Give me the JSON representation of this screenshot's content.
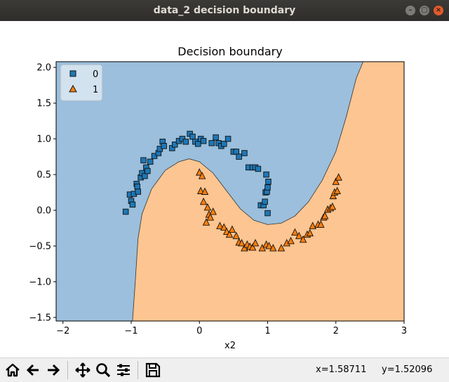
{
  "window": {
    "title": "data_2 decision boundary"
  },
  "window_buttons": {
    "minimize": "–",
    "maximize": "▢",
    "close": "×"
  },
  "chart_data": {
    "type": "scatter",
    "title": "Decision boundary",
    "xlabel": "x2",
    "ylabel": "",
    "xlim": [
      -2.1,
      3.0
    ],
    "ylim": [
      -1.55,
      2.08
    ],
    "xticks": [
      "−2",
      "−1",
      "0",
      "1",
      "2",
      "3"
    ],
    "yticks": [
      "2.0",
      "1.5",
      "1.0",
      "0.5",
      "0.0",
      "−0.5",
      "−1.0",
      "−1.5"
    ],
    "legend": {
      "placement": "upper-left",
      "entries": [
        "0",
        "1"
      ]
    },
    "region_colors": {
      "class_0": "#9bbfdc",
      "class_1": "#fdc591"
    },
    "marker_colors": {
      "class_0": "#1f77b4",
      "class_1": "#ff7f0e"
    },
    "boundary": [
      [
        -0.98,
        -1.55
      ],
      [
        -0.94,
        -1.0
      ],
      [
        -0.9,
        -0.4
      ],
      [
        -0.84,
        -0.05
      ],
      [
        -0.7,
        0.3
      ],
      [
        -0.5,
        0.56
      ],
      [
        -0.3,
        0.68
      ],
      [
        -0.15,
        0.72
      ],
      [
        0.0,
        0.68
      ],
      [
        0.2,
        0.52
      ],
      [
        0.4,
        0.27
      ],
      [
        0.6,
        0.02
      ],
      [
        0.8,
        -0.14
      ],
      [
        1.0,
        -0.2
      ],
      [
        1.2,
        -0.18
      ],
      [
        1.4,
        -0.08
      ],
      [
        1.6,
        0.12
      ],
      [
        1.8,
        0.42
      ],
      [
        2.0,
        0.82
      ],
      [
        2.15,
        1.3
      ],
      [
        2.3,
        1.85
      ],
      [
        2.4,
        2.08
      ]
    ],
    "series": [
      {
        "name": "0",
        "marker": "square",
        "points": [
          [
            -1.08,
            -0.02
          ],
          [
            -1.02,
            0.22
          ],
          [
            -1.0,
            0.13
          ],
          [
            -0.98,
            0.08
          ],
          [
            -0.96,
            0.23
          ],
          [
            -0.92,
            0.37
          ],
          [
            -0.91,
            0.33
          ],
          [
            -0.9,
            0.26
          ],
          [
            -0.86,
            0.46
          ],
          [
            -0.84,
            0.52
          ],
          [
            -0.82,
            0.7
          ],
          [
            -0.8,
            0.48
          ],
          [
            -0.78,
            0.6
          ],
          [
            -0.76,
            0.55
          ],
          [
            -0.72,
            0.68
          ],
          [
            -0.66,
            0.76
          ],
          [
            -0.6,
            0.8
          ],
          [
            -0.58,
            0.86
          ],
          [
            -0.54,
            0.96
          ],
          [
            -0.52,
            0.9
          ],
          [
            -0.4,
            0.87
          ],
          [
            -0.36,
            0.92
          ],
          [
            -0.3,
            0.97
          ],
          [
            -0.25,
            1.0
          ],
          [
            -0.2,
            0.96
          ],
          [
            -0.14,
            1.07
          ],
          [
            -0.1,
            1.03
          ],
          [
            -0.06,
            0.96
          ],
          [
            -0.02,
            0.93
          ],
          [
            0.02,
            1.0
          ],
          [
            0.06,
            0.97
          ],
          [
            0.18,
            0.94
          ],
          [
            0.24,
            1.02
          ],
          [
            0.28,
            0.94
          ],
          [
            0.32,
            0.9
          ],
          [
            0.36,
            0.93
          ],
          [
            0.42,
            1.0
          ],
          [
            0.5,
            0.82
          ],
          [
            0.54,
            0.82
          ],
          [
            0.58,
            0.75
          ],
          [
            0.66,
            0.8
          ],
          [
            0.72,
            0.6
          ],
          [
            0.78,
            0.6
          ],
          [
            0.82,
            0.6
          ],
          [
            0.86,
            0.58
          ],
          [
            0.9,
            0.07
          ],
          [
            0.94,
            0.07
          ],
          [
            0.96,
            0.12
          ],
          [
            0.97,
            0.25
          ],
          [
            0.98,
            0.5
          ],
          [
            0.99,
            0.26
          ],
          [
            1.0,
            0.32
          ],
          [
            1.01,
            0.4
          ],
          [
            1.0,
            -0.04
          ]
        ]
      },
      {
        "name": "1",
        "marker": "triangle",
        "points": [
          [
            0.0,
            0.53
          ],
          [
            0.02,
            0.27
          ],
          [
            0.04,
            0.48
          ],
          [
            0.06,
            0.12
          ],
          [
            0.08,
            0.26
          ],
          [
            0.12,
            0.04
          ],
          [
            0.1,
            -0.17
          ],
          [
            0.14,
            -0.06
          ],
          [
            0.16,
            -0.1
          ],
          [
            0.2,
            -0.02
          ],
          [
            0.3,
            -0.22
          ],
          [
            0.36,
            -0.24
          ],
          [
            0.4,
            -0.3
          ],
          [
            0.44,
            -0.34
          ],
          [
            0.48,
            -0.27
          ],
          [
            0.54,
            -0.36
          ],
          [
            0.58,
            -0.45
          ],
          [
            0.62,
            -0.46
          ],
          [
            0.66,
            -0.53
          ],
          [
            0.7,
            -0.48
          ],
          [
            0.74,
            -0.51
          ],
          [
            0.78,
            -0.52
          ],
          [
            0.82,
            -0.46
          ],
          [
            0.92,
            -0.53
          ],
          [
            0.98,
            -0.48
          ],
          [
            1.02,
            -0.5
          ],
          [
            1.08,
            -0.53
          ],
          [
            1.2,
            -0.53
          ],
          [
            1.28,
            -0.46
          ],
          [
            1.34,
            -0.43
          ],
          [
            1.4,
            -0.31
          ],
          [
            1.46,
            -0.36
          ],
          [
            1.52,
            -0.41
          ],
          [
            1.58,
            -0.34
          ],
          [
            1.62,
            -0.32
          ],
          [
            1.66,
            -0.22
          ],
          [
            1.74,
            -0.2
          ],
          [
            1.78,
            -0.2
          ],
          [
            1.82,
            -0.1
          ],
          [
            1.84,
            -0.08
          ],
          [
            1.88,
            0.01
          ],
          [
            1.92,
            0.03
          ],
          [
            1.95,
            0.05
          ],
          [
            1.96,
            0.2
          ],
          [
            1.98,
            0.25
          ],
          [
            2.0,
            0.4
          ],
          [
            2.02,
            0.27
          ],
          [
            2.04,
            0.46
          ]
        ]
      }
    ]
  },
  "toolbar": {
    "home": "home-icon",
    "back": "back-arrow-icon",
    "forward": "forward-arrow-icon",
    "pan": "pan-icon",
    "zoom": "zoom-icon",
    "configure": "configure-subplots-icon",
    "save": "save-icon",
    "x_readout": "x=1.58711",
    "y_readout": "y=1.52096"
  }
}
